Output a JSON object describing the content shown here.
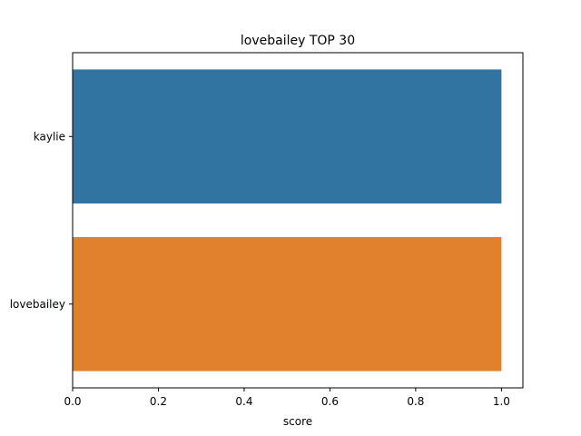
{
  "chart_data": {
    "type": "bar",
    "orientation": "horizontal",
    "title": "lovebailey TOP 30",
    "xlabel": "score",
    "ylabel": "",
    "categories": [
      "kaylie",
      "lovebailey"
    ],
    "values": [
      1.0,
      1.0
    ],
    "colors": [
      "#3274a1",
      "#e1812c"
    ],
    "xlim": [
      0,
      1.05
    ],
    "xticks": [
      "0.0",
      "0.2",
      "0.4",
      "0.6",
      "0.8",
      "1.0"
    ],
    "grid": false,
    "legend": "none"
  }
}
